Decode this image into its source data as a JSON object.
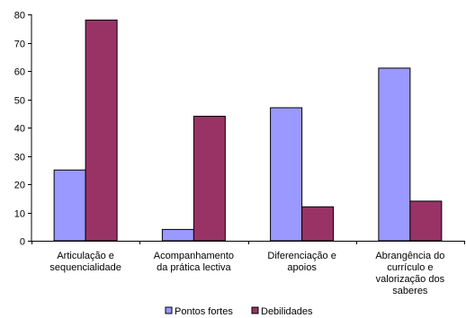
{
  "chart_data": {
    "type": "bar",
    "categories": [
      [
        "Articulação e",
        "sequencialidade"
      ],
      [
        "Acompanhamento",
        "da prática lectiva"
      ],
      [
        "Diferenciação e",
        "apoios"
      ],
      [
        "Abrangência do",
        "currículo e",
        "valorização dos",
        "saberes"
      ]
    ],
    "series": [
      {
        "name": "Pontos fortes",
        "values": [
          25,
          4,
          47,
          61
        ],
        "color": "#9999ff"
      },
      {
        "name": "Debilidades",
        "values": [
          78,
          44,
          12,
          14
        ],
        "color": "#993366"
      }
    ],
    "ylim": [
      0,
      80
    ],
    "yticks": [
      0,
      10,
      20,
      30,
      40,
      50,
      60,
      70,
      80
    ],
    "grid": false,
    "legend": "bottom"
  }
}
